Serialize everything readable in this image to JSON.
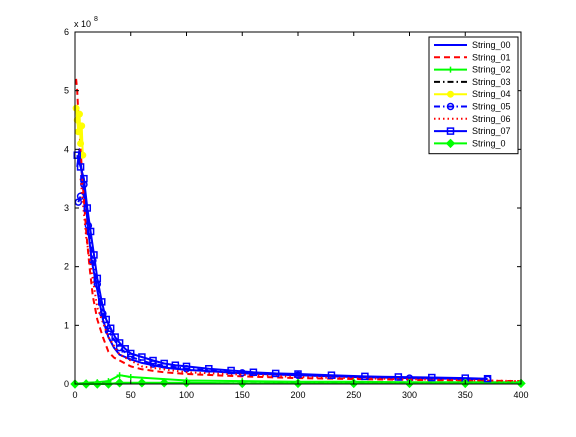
{
  "chart_data": {
    "type": "line",
    "title": "",
    "xlabel": "",
    "ylabel": "",
    "xlim": [
      0,
      400
    ],
    "ylim": [
      0,
      6
    ],
    "x_ticks": [
      "0",
      "50",
      "100",
      "150",
      "200",
      "250",
      "300",
      "350",
      "400"
    ],
    "y_ticks": [
      "0",
      "1",
      "2",
      "3",
      "4",
      "5",
      "6"
    ],
    "y_exponent_base": "x 10",
    "y_exponent_power": "8",
    "grid": false,
    "legend_placement": "top-right",
    "series": [
      {
        "name": "String_00",
        "color": "#0000ff",
        "style": "solid",
        "marker": "none",
        "x": [
          2,
          4,
          6,
          8,
          10,
          12,
          15,
          18,
          21,
          25,
          30,
          35,
          40,
          50,
          60,
          70,
          80,
          100,
          120,
          150,
          200,
          250,
          300,
          350,
          370
        ],
        "y": [
          3.7,
          4.0,
          3.6,
          3.3,
          3.0,
          2.6,
          2.1,
          1.8,
          1.5,
          1.1,
          0.8,
          0.62,
          0.5,
          0.42,
          0.36,
          0.32,
          0.28,
          0.24,
          0.22,
          0.18,
          0.15,
          0.12,
          0.1,
          0.09,
          0.08
        ]
      },
      {
        "name": "String_01",
        "color": "#ff0000",
        "style": "dashed",
        "marker": "none",
        "x": [
          1,
          2,
          3,
          5,
          7,
          10,
          13,
          16,
          20,
          25,
          30,
          35,
          40,
          50,
          60,
          80,
          100,
          150,
          200,
          300,
          400
        ],
        "y": [
          5.2,
          5.0,
          4.6,
          4.0,
          3.4,
          2.6,
          2.0,
          1.5,
          1.1,
          0.8,
          0.55,
          0.45,
          0.4,
          0.3,
          0.25,
          0.2,
          0.17,
          0.13,
          0.1,
          0.07,
          0.05
        ]
      },
      {
        "name": "String_02",
        "color": "#00ff00",
        "style": "solid",
        "marker": "plus",
        "x": [
          0,
          10,
          20,
          30,
          40,
          50,
          100,
          150,
          200,
          250,
          300,
          350,
          400
        ],
        "y": [
          0.0,
          0.02,
          0.03,
          0.05,
          0.15,
          0.12,
          0.06,
          0.05,
          0.04,
          0.04,
          0.03,
          0.03,
          0.03
        ]
      },
      {
        "name": "String_03",
        "color": "#000000",
        "style": "dashdot",
        "marker": "none",
        "x": [
          0,
          50,
          100,
          200,
          300,
          400
        ],
        "y": [
          0.0,
          0.01,
          0.01,
          0.01,
          0.01,
          0.01
        ]
      },
      {
        "name": "String_04",
        "color": "#ffff00",
        "style": "solid",
        "marker": "circle-filled",
        "x": [
          1,
          2,
          3,
          4,
          5,
          6,
          7
        ],
        "y": [
          4.7,
          4.5,
          4.3,
          4.6,
          4.1,
          4.4,
          3.9
        ]
      },
      {
        "name": "String_05",
        "color": "#0000ff",
        "style": "dashdot",
        "marker": "circle",
        "x": [
          3,
          5,
          8,
          12,
          16,
          20,
          25,
          30,
          40,
          50,
          70,
          100,
          150,
          200,
          300,
          370
        ],
        "y": [
          3.1,
          3.2,
          3.4,
          2.7,
          2.1,
          1.7,
          1.2,
          0.9,
          0.62,
          0.46,
          0.34,
          0.26,
          0.19,
          0.15,
          0.1,
          0.08
        ]
      },
      {
        "name": "String_06",
        "color": "#ff0000",
        "style": "dotted",
        "marker": "none",
        "x": [
          5,
          10,
          20,
          30,
          40,
          60,
          100,
          200,
          300,
          400
        ],
        "y": [
          3.5,
          2.5,
          1.3,
          0.8,
          0.5,
          0.3,
          0.2,
          0.12,
          0.08,
          0.05
        ]
      },
      {
        "name": "String_07",
        "color": "#0000ff",
        "style": "solid",
        "marker": "square",
        "x": [
          2,
          5,
          8,
          11,
          14,
          17,
          20,
          24,
          28,
          32,
          36,
          40,
          45,
          50,
          60,
          70,
          80,
          90,
          100,
          120,
          140,
          160,
          180,
          200,
          230,
          260,
          290,
          320,
          350,
          370
        ],
        "y": [
          3.9,
          3.7,
          3.5,
          3.0,
          2.6,
          2.2,
          1.8,
          1.4,
          1.1,
          0.95,
          0.8,
          0.7,
          0.6,
          0.52,
          0.46,
          0.4,
          0.35,
          0.32,
          0.3,
          0.26,
          0.23,
          0.2,
          0.18,
          0.17,
          0.15,
          0.13,
          0.12,
          0.11,
          0.1,
          0.09
        ]
      },
      {
        "name": "String_0",
        "color": "#00ff00",
        "style": "solid",
        "marker": "diamond-filled",
        "x": [
          0,
          10,
          20,
          30,
          40,
          60,
          80,
          100,
          150,
          200,
          250,
          300,
          350,
          400
        ],
        "y": [
          0.0,
          0.0,
          0.0,
          0.0,
          0.02,
          0.02,
          0.02,
          0.02,
          0.01,
          0.01,
          0.01,
          0.01,
          0.01,
          0.01
        ]
      }
    ]
  }
}
